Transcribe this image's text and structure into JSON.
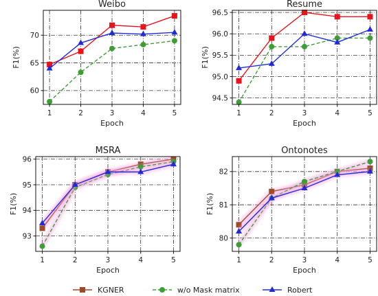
{
  "chart_data": [
    {
      "type": "line",
      "title": "Weibo",
      "xlabel": "Epoch",
      "ylabel": "F1(%)",
      "x": [
        1,
        2,
        3,
        4,
        5
      ],
      "xticks": [
        "1",
        "2",
        "3",
        "4",
        "5"
      ],
      "ylim": [
        57.5,
        74.5
      ],
      "yticks": [
        60,
        65,
        70
      ],
      "ytick_labels": [
        "60",
        "65",
        "70"
      ],
      "grid": true,
      "series": [
        {
          "name": "KGNER",
          "values": [
            64.7,
            67.1,
            71.8,
            71.5,
            73.5
          ]
        },
        {
          "name": "w/o Mask matrix",
          "values": [
            58.0,
            63.3,
            67.6,
            68.3,
            69.0
          ]
        },
        {
          "name": "Robert",
          "values": [
            64.0,
            68.6,
            70.4,
            70.2,
            70.5
          ]
        }
      ]
    },
    {
      "type": "line",
      "title": "Resume",
      "xlabel": "Epoch",
      "ylabel": "F1(%)",
      "x": [
        1,
        2,
        3,
        4,
        5
      ],
      "xticks": [
        "1",
        "2",
        "3",
        "4",
        "5"
      ],
      "ylim": [
        94.35,
        96.55
      ],
      "yticks": [
        94.5,
        95.0,
        95.5,
        96.0,
        96.5
      ],
      "ytick_labels": [
        "94.5",
        "95.0",
        "95.5",
        "96.0",
        "96.5"
      ],
      "grid": true,
      "series": [
        {
          "name": "KGNER",
          "values": [
            94.9,
            95.9,
            96.5,
            96.4,
            96.4
          ]
        },
        {
          "name": "w/o Mask matrix",
          "values": [
            94.4,
            95.7,
            95.7,
            95.9,
            95.9
          ]
        },
        {
          "name": "Robert",
          "values": [
            95.2,
            95.3,
            96.0,
            95.8,
            96.1
          ]
        }
      ]
    },
    {
      "type": "line",
      "title": "MSRA",
      "xlabel": "Epoch",
      "ylabel": "F1(%)",
      "x": [
        1,
        2,
        3,
        4,
        5
      ],
      "xticks": [
        "1",
        "2",
        "3",
        "4",
        "5"
      ],
      "ylim": [
        92.4,
        96.1
      ],
      "yticks": [
        93,
        94,
        95,
        96
      ],
      "ytick_labels": [
        "93",
        "94",
        "95",
        "96"
      ],
      "grid": true,
      "series": [
        {
          "name": "KGNER",
          "values": [
            93.3,
            95.0,
            95.5,
            95.8,
            96.0
          ]
        },
        {
          "name": "w/o Mask matrix",
          "values": [
            92.6,
            94.9,
            95.4,
            95.7,
            95.9
          ]
        },
        {
          "name": "Robert",
          "values": [
            93.5,
            95.0,
            95.5,
            95.5,
            95.8
          ]
        }
      ]
    },
    {
      "type": "line",
      "title": "Ontonotes",
      "xlabel": "Epoch",
      "ylabel": "F1(%)",
      "x": [
        1,
        2,
        3,
        4,
        5
      ],
      "xticks": [
        "1",
        "2",
        "3",
        "4",
        "5"
      ],
      "ylim": [
        79.6,
        82.45
      ],
      "yticks": [
        80,
        81,
        82
      ],
      "ytick_labels": [
        "80",
        "81",
        "82"
      ],
      "grid": true,
      "series": [
        {
          "name": "KGNER",
          "values": [
            80.4,
            81.4,
            81.6,
            82.0,
            82.1
          ]
        },
        {
          "name": "w/o Mask matrix",
          "values": [
            79.8,
            81.2,
            81.7,
            82.0,
            82.3
          ]
        },
        {
          "name": "Robert",
          "values": [
            80.2,
            81.2,
            81.5,
            81.9,
            82.0
          ]
        }
      ]
    }
  ],
  "legend": {
    "placement": "bottom-center",
    "items": [
      {
        "label": "KGNER",
        "color": "#9b4a2a",
        "marker": "square",
        "dash": "solid"
      },
      {
        "label": "w/o Mask matrix",
        "color": "#3c9e35",
        "marker": "circle",
        "dash": "dashed"
      },
      {
        "label": "Robert",
        "color": "#1f2bd6",
        "marker": "triangle",
        "dash": "solid"
      }
    ]
  },
  "styles": {
    "top_row_colors": [
      "#e8141d",
      "#3c9e35",
      "#1f2bd6"
    ],
    "bottom_row_colors": [
      "#9b4a2a",
      "#3c9e35",
      "#1f2bd6"
    ],
    "glow_color": "#f7a8e0"
  }
}
